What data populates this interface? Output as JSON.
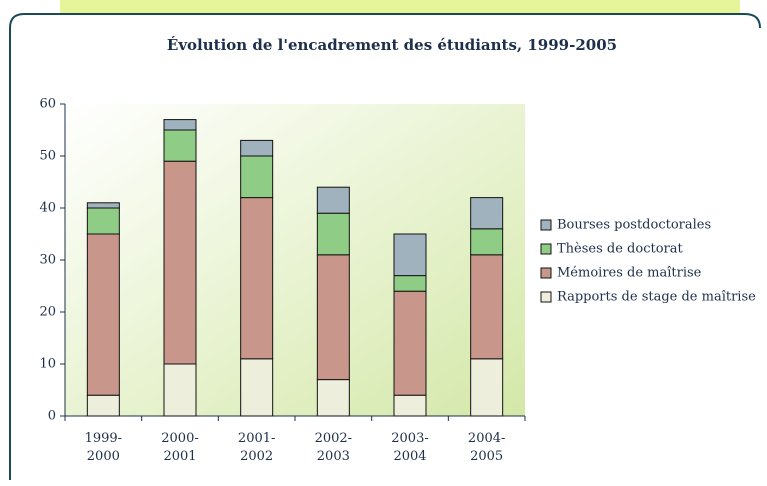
{
  "chart_data": {
    "type": "stacked_bar",
    "title": "Évolution de l'encadrement des étudiants, 1999-2005",
    "categories": [
      "1999-\n2000",
      "2000-\n2001",
      "2001-\n2002",
      "2002-\n2003",
      "2003-\n2004",
      "2004-\n2005"
    ],
    "series": [
      {
        "name": "Rapports de stage de maîtrise",
        "color": "#eeeedd",
        "values": [
          4,
          10,
          11,
          7,
          4,
          11
        ]
      },
      {
        "name": "Mémoires de maîtrise",
        "color": "#c8968a",
        "values": [
          31,
          39,
          31,
          24,
          20,
          20
        ]
      },
      {
        "name": "Thèses de doctorat",
        "color": "#8fcc86",
        "values": [
          5,
          6,
          8,
          8,
          3,
          5
        ]
      },
      {
        "name": "Bourses postdoctorales",
        "color": "#9fb2bd",
        "values": [
          1,
          2,
          3,
          5,
          8,
          6
        ]
      }
    ],
    "ylim": [
      0,
      60
    ],
    "yticks": [
      0,
      10,
      20,
      30,
      40,
      50,
      60
    ],
    "legend": "right"
  }
}
